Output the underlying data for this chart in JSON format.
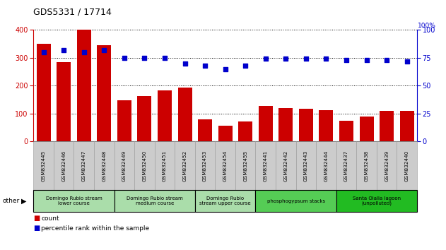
{
  "title": "GDS5331 / 17714",
  "categories": [
    "GSM832445",
    "GSM832446",
    "GSM832447",
    "GSM832448",
    "GSM832449",
    "GSM832450",
    "GSM832451",
    "GSM832452",
    "GSM832453",
    "GSM832454",
    "GSM832455",
    "GSM832441",
    "GSM832442",
    "GSM832443",
    "GSM832444",
    "GSM832437",
    "GSM832438",
    "GSM832439",
    "GSM832440"
  ],
  "counts": [
    350,
    285,
    400,
    345,
    148,
    163,
    182,
    192,
    80,
    57,
    72,
    128,
    120,
    118,
    112,
    73,
    90,
    110,
    110
  ],
  "percentiles": [
    80,
    82,
    80,
    82,
    75,
    75,
    75,
    70,
    68,
    65,
    68,
    74,
    74,
    74,
    74,
    73,
    73,
    73,
    72
  ],
  "ylim_left": [
    0,
    400
  ],
  "ylim_right": [
    0,
    100
  ],
  "yticks_left": [
    0,
    100,
    200,
    300,
    400
  ],
  "yticks_right": [
    0,
    25,
    50,
    75,
    100
  ],
  "bar_color": "#cc0000",
  "dot_color": "#0000cc",
  "group_labels": [
    {
      "label": "Domingo Rubio stream\nlower course",
      "start": 0,
      "end": 3,
      "color": "#aaddaa"
    },
    {
      "label": "Domingo Rubio stream\nmedium course",
      "start": 4,
      "end": 7,
      "color": "#aaddaa"
    },
    {
      "label": "Domingo Rubio\nstream upper course",
      "start": 8,
      "end": 10,
      "color": "#aaddaa"
    },
    {
      "label": "phosphogypsum stacks",
      "start": 11,
      "end": 14,
      "color": "#55cc55"
    },
    {
      "label": "Santa Olalla lagoon\n(unpolluted)",
      "start": 15,
      "end": 18,
      "color": "#22bb22"
    }
  ],
  "legend_count_label": "count",
  "legend_pct_label": "percentile rank within the sample",
  "other_label": "other",
  "left_axis_color": "#cc0000",
  "right_axis_color": "#0000cc",
  "tick_label_bg": "#cccccc",
  "pct_label": "100%"
}
